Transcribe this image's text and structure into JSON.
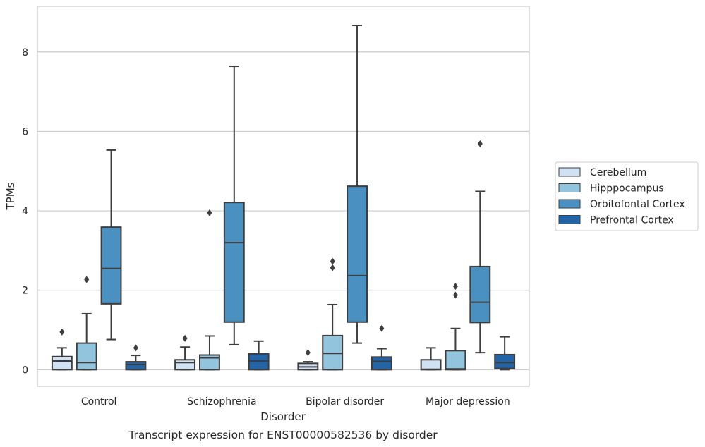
{
  "chart_data": {
    "type": "box",
    "title": "",
    "caption": "Transcript expression for ENST00000582536 by disorder",
    "xlabel": "Disorder",
    "ylabel": "TPMs",
    "ylim": [
      -0.42,
      9.15
    ],
    "yticks": [
      0,
      2,
      4,
      6,
      8
    ],
    "grid": "horizontal",
    "legend_position": "right",
    "categories": [
      "Control",
      "Schizophrenia",
      "Bipolar disorder",
      "Major depression"
    ],
    "series": [
      {
        "name": "Cerebellum",
        "color": "#cfe1f2",
        "boxes": [
          {
            "low": 0,
            "q1": 0,
            "median": 0.22,
            "q3": 0.33,
            "high": 0.55,
            "outliers": [
              0.95
            ]
          },
          {
            "low": 0,
            "q1": 0,
            "median": 0.18,
            "q3": 0.25,
            "high": 0.57,
            "outliers": [
              0.79
            ]
          },
          {
            "low": 0,
            "q1": 0,
            "median": 0.07,
            "q3": 0.16,
            "high": 0.2,
            "outliers": [
              0.43
            ]
          },
          {
            "low": 0,
            "q1": 0,
            "median": 0.01,
            "q3": 0.25,
            "high": 0.55,
            "outliers": []
          }
        ]
      },
      {
        "name": "Hipppocampus",
        "color": "#93c4de",
        "boxes": [
          {
            "low": 0,
            "q1": 0,
            "median": 0.18,
            "q3": 0.67,
            "high": 1.41,
            "outliers": [
              2.27
            ]
          },
          {
            "low": 0,
            "q1": 0,
            "median": 0.3,
            "q3": 0.37,
            "high": 0.85,
            "outliers": [
              3.95
            ]
          },
          {
            "low": 0,
            "q1": 0,
            "median": 0.41,
            "q3": 0.86,
            "high": 1.64,
            "outliers": [
              2.57,
              2.73
            ]
          },
          {
            "low": 0,
            "q1": 0,
            "median": 0.02,
            "q3": 0.48,
            "high": 1.04,
            "outliers": [
              1.88,
              2.1
            ]
          }
        ]
      },
      {
        "name": "Orbitofontal Cortex",
        "color": "#4a91c2",
        "boxes": [
          {
            "low": 0.76,
            "q1": 1.66,
            "median": 2.55,
            "q3": 3.59,
            "high": 5.53,
            "outliers": []
          },
          {
            "low": 0.63,
            "q1": 1.2,
            "median": 3.2,
            "q3": 4.21,
            "high": 7.64,
            "outliers": []
          },
          {
            "low": 0.67,
            "q1": 1.2,
            "median": 2.37,
            "q3": 4.62,
            "high": 8.67,
            "outliers": []
          },
          {
            "low": 0.43,
            "q1": 1.19,
            "median": 1.7,
            "q3": 2.6,
            "high": 4.49,
            "outliers": [
              5.69
            ]
          }
        ]
      },
      {
        "name": "Prefrontal Cortex",
        "color": "#2264a6",
        "boxes": [
          {
            "low": 0,
            "q1": 0,
            "median": 0.13,
            "q3": 0.2,
            "high": 0.36,
            "outliers": [
              0.55
            ]
          },
          {
            "low": 0,
            "q1": 0,
            "median": 0.22,
            "q3": 0.4,
            "high": 0.72,
            "outliers": []
          },
          {
            "low": 0,
            "q1": 0,
            "median": 0.21,
            "q3": 0.32,
            "high": 0.53,
            "outliers": [
              1.04
            ]
          },
          {
            "low": 0,
            "q1": 0.03,
            "median": 0.18,
            "q3": 0.38,
            "high": 0.83,
            "outliers": []
          }
        ]
      }
    ]
  }
}
